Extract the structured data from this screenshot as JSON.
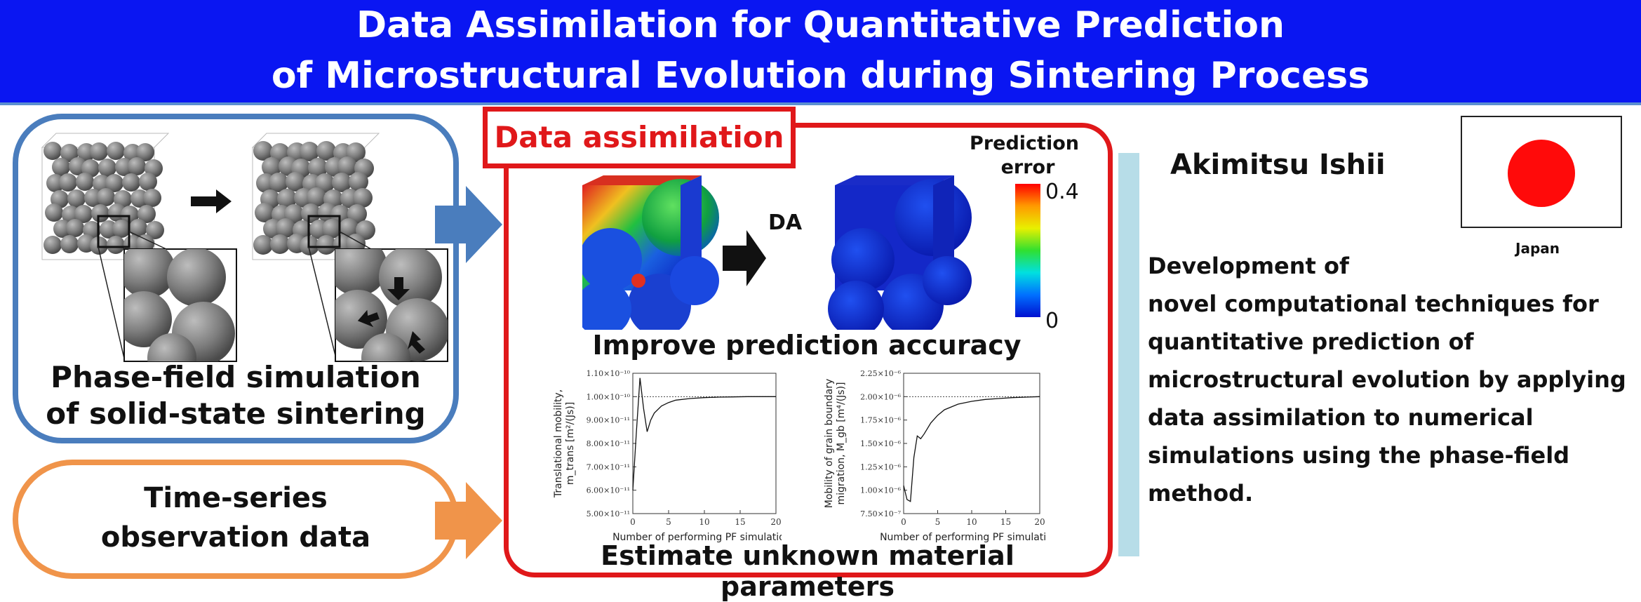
{
  "title": {
    "line1": "Data Assimilation for Quantitative Prediction",
    "line2": "of Microstructural Evolution during Sintering Process"
  },
  "simulation": {
    "line1": "Phase-field simulation",
    "line2": "of solid-state sintering"
  },
  "observation": {
    "line1": "Time-series",
    "line2": "observation data"
  },
  "data_assimilation": {
    "label": "Data assimilation",
    "arrow_label": "DA",
    "colorbar_title_1": "Prediction",
    "colorbar_title_2": "error",
    "colorbar_max": "0.4",
    "colorbar_min": "0",
    "improve_text": "Improve prediction accuracy",
    "estimate_text": "Estimate unknown material parameters"
  },
  "author": {
    "name": "Akimitsu Ishii",
    "country": "Japan"
  },
  "description": [
    "Development of",
    "novel computational techniques for",
    "quantitative prediction of",
    "microstructural evolution by applying",
    "data assimilation to numerical",
    "simulations using the phase-field",
    "method."
  ],
  "chart_data": [
    {
      "type": "line",
      "xlabel": "Number of performing PF simulations",
      "ylabel_1": "Translational mobility,",
      "ylabel_2": "m_trans [m²/(Js)]",
      "xlim": [
        0,
        20
      ],
      "ylim": [
        5e-11,
        1.1e-10
      ],
      "x_ticks": [
        "0",
        "5",
        "10",
        "15",
        "20"
      ],
      "y_ticks": [
        "1.10×10⁻¹⁰",
        "1.00×10⁻¹⁰",
        "9.00×10⁻¹¹",
        "8.00×10⁻¹¹",
        "7.00×10⁻¹¹",
        "6.00×10⁻¹¹",
        "5.00×10⁻¹¹"
      ],
      "y_tick_values": [
        1.1e-10,
        1e-10,
        9e-11,
        8e-11,
        7e-11,
        6e-11,
        5e-11
      ],
      "reference": 1e-10,
      "x": [
        0,
        0.5,
        1,
        1.5,
        2,
        2.5,
        3,
        4,
        5,
        6,
        8,
        10,
        12,
        14,
        16,
        18,
        20
      ],
      "y": [
        6e-11,
        8.5e-11,
        1.08e-10,
        9.5e-11,
        8.5e-11,
        9e-11,
        9.3e-11,
        9.6e-11,
        9.75e-11,
        9.85e-11,
        9.92e-11,
        9.96e-11,
        9.98e-11,
        9.99e-11,
        1e-10,
        1e-10,
        1e-10
      ]
    },
    {
      "type": "line",
      "xlabel": "Number of performing PF simulations",
      "ylabel_1": "Mobility of grain boundary",
      "ylabel_2": "migration, M_gb [m⁴/(Js)]",
      "xlim": [
        0,
        20
      ],
      "ylim": [
        7.5e-07,
        2.25e-06
      ],
      "x_ticks": [
        "0",
        "5",
        "10",
        "15",
        "20"
      ],
      "y_ticks": [
        "2.25×10⁻⁶",
        "2.00×10⁻⁶",
        "1.75×10⁻⁶",
        "1.50×10⁻⁶",
        "1.25×10⁻⁶",
        "1.00×10⁻⁶",
        "7.50×10⁻⁷"
      ],
      "y_tick_values": [
        2.25e-06,
        2e-06,
        1.75e-06,
        1.5e-06,
        1.25e-06,
        1e-06,
        7.5e-07
      ],
      "reference": 2e-06,
      "x": [
        0,
        0.5,
        1,
        1.5,
        2,
        2.5,
        3,
        4,
        5,
        6,
        8,
        10,
        12,
        14,
        16,
        18,
        20
      ],
      "y": [
        1.05e-06,
        9e-07,
        8.8e-07,
        1.35e-06,
        1.58e-06,
        1.55e-06,
        1.6e-06,
        1.72e-06,
        1.8e-06,
        1.86e-06,
        1.92e-06,
        1.95e-06,
        1.97e-06,
        1.98e-06,
        1.99e-06,
        1.995e-06,
        2e-06
      ]
    }
  ]
}
